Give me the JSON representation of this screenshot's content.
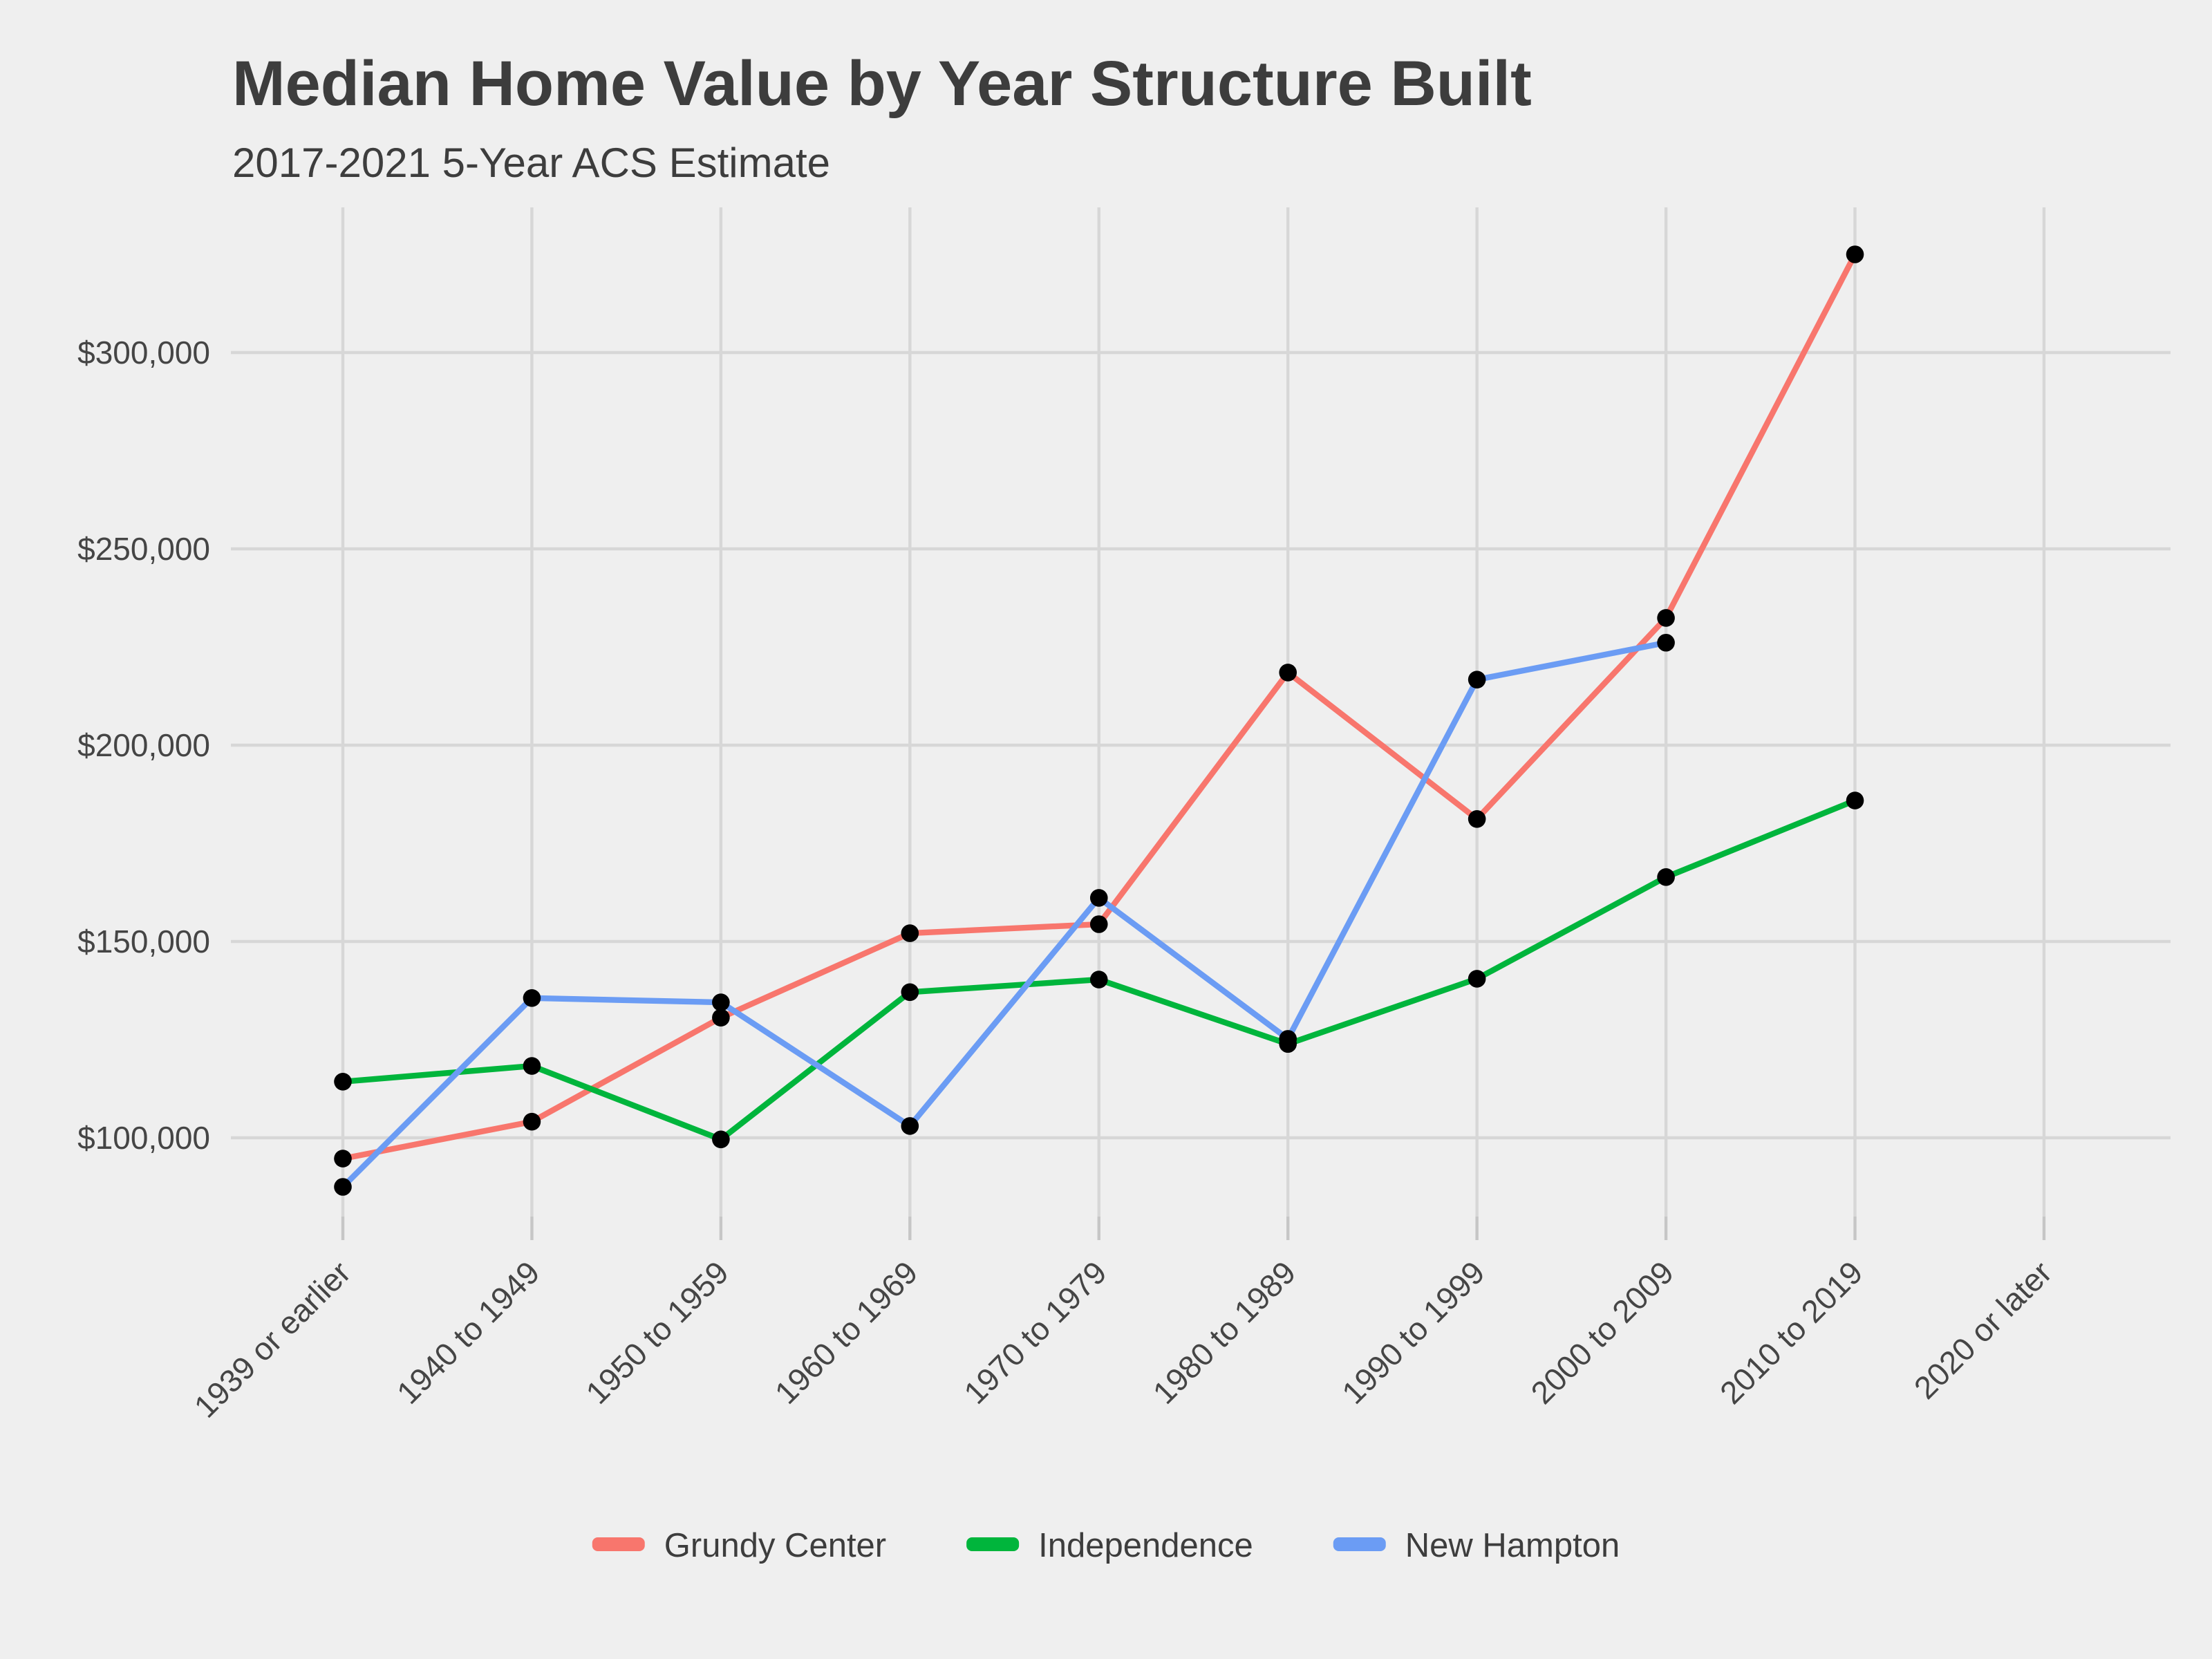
{
  "title": "Median Home Value by Year Structure Built",
  "subtitle": "2017-2021 5-Year ACS Estimate",
  "colors": {
    "background": "#efefef",
    "gridline": "#d7d7d7",
    "tick_mark": "#c6c6c6",
    "title_text": "#3d3d3d",
    "axis_text": "#454545",
    "point": "#000000"
  },
  "chart_data": {
    "type": "line",
    "title": "Median Home Value by Year Structure Built",
    "subtitle": "2017-2021 5-Year ACS Estimate",
    "categories": [
      "1939 or earlier",
      "1940 to 1949",
      "1950 to 1959",
      "1960 to 1969",
      "1970 to 1979",
      "1980 to 1989",
      "1990 to 1999",
      "2000 to 2009",
      "2010 to 2019",
      "2020 or later"
    ],
    "series": [
      {
        "name": "Grundy Center",
        "color": "#f8766d",
        "values": [
          94700,
          104100,
          130600,
          152100,
          154400,
          218500,
          181200,
          232400,
          325000,
          null
        ]
      },
      {
        "name": "Independence",
        "color": "#00b53c",
        "values": [
          114300,
          118300,
          99600,
          137100,
          140300,
          123900,
          140500,
          166400,
          185900,
          null
        ]
      },
      {
        "name": "New Hampton",
        "color": "#6b9cf4",
        "values": [
          87500,
          135600,
          134500,
          103000,
          161100,
          125200,
          216700,
          226100,
          null,
          null
        ]
      }
    ],
    "y_ticks": [
      {
        "value": 100000,
        "label": "$100,000"
      },
      {
        "value": 150000,
        "label": "$150,000"
      },
      {
        "value": 200000,
        "label": "$200,000"
      },
      {
        "value": 250000,
        "label": "$250,000"
      },
      {
        "value": 300000,
        "label": "$300,000"
      }
    ],
    "ylim": [
      80000,
      337000
    ],
    "xlabel": "",
    "ylabel": "",
    "grid": true,
    "legend_position": "bottom",
    "points": "black dots on every data value",
    "x_label_rotation_deg": 45
  }
}
